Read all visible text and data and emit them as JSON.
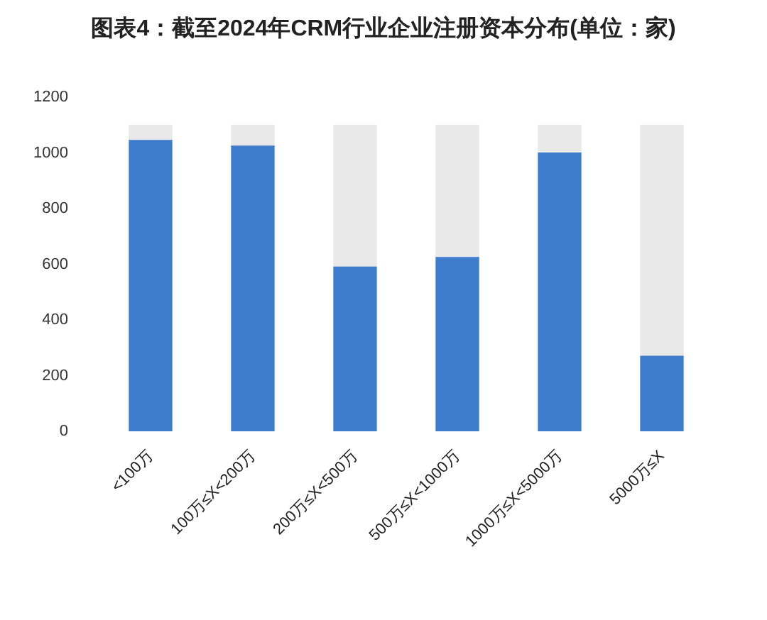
{
  "chart_data": {
    "type": "bar",
    "title": "图表4：截至2024年CRM行业企业注册资本分布(单位：家)",
    "categories": [
      "<100万",
      "100万≤X<200万",
      "200万≤X<500万",
      "500万≤X<1000万",
      "1000万≤X<5000万",
      "5000万≤X"
    ],
    "series": [
      {
        "color": "#3f7dcc",
        "values": [
          1045,
          1025,
          590,
          625,
          1000,
          270
        ]
      },
      {
        "color": "#e9e9e9",
        "values": [
          55,
          75,
          510,
          475,
          100,
          830
        ]
      }
    ],
    "stacked": true,
    "ylim": [
      0,
      1200
    ],
    "yticks": [
      0,
      200,
      400,
      600,
      800,
      1000,
      1200
    ],
    "grid": false
  }
}
